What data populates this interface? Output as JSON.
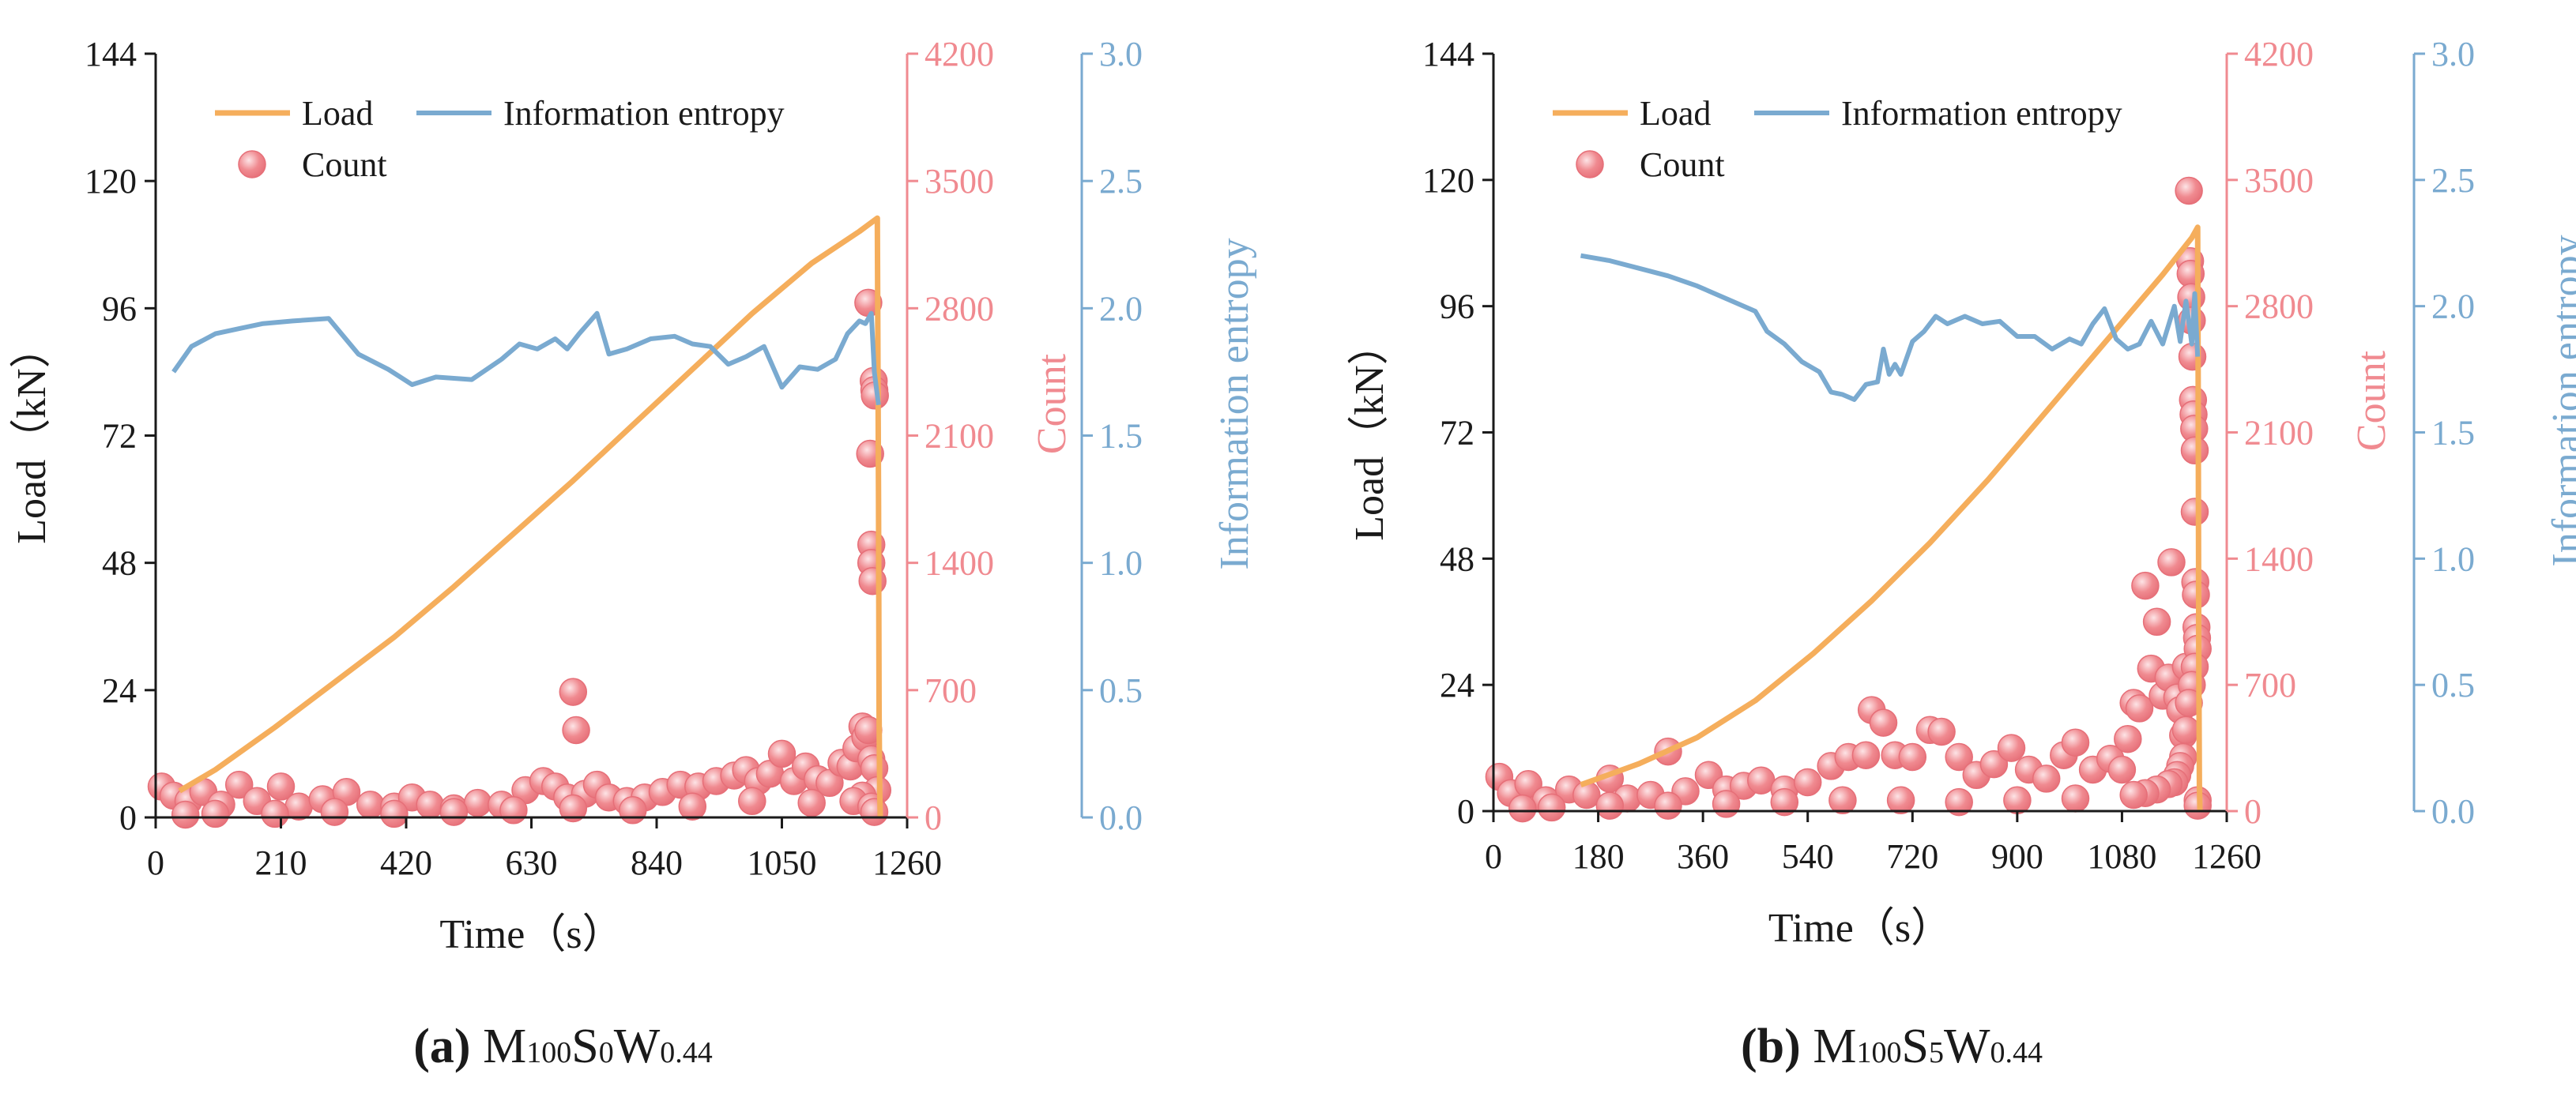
{
  "colors": {
    "load": "#F5AE5C",
    "count": "#F08A90",
    "count_stroke": "#E66F78",
    "entropy": "#7AAAD0",
    "axis": "#1a1a1a"
  },
  "chart_data": [
    {
      "type": "line+scatter",
      "id": "a",
      "caption": {
        "label": "(a)",
        "parts": [
          {
            "text": "M",
            "sub": false
          },
          {
            "text": "100",
            "sub": true
          },
          {
            "text": "S",
            "sub": false
          },
          {
            "text": "0",
            "sub": true
          },
          {
            "text": "W",
            "sub": false
          },
          {
            "text": "0.44",
            "sub": true
          }
        ]
      },
      "xlabel": "Time（s）",
      "ylabel": "Load（kN）",
      "y2label": "Count",
      "y3label": "Information entropy",
      "xlim": [
        0,
        1260
      ],
      "xticks": [
        0,
        210,
        420,
        630,
        840,
        1050,
        1260
      ],
      "ylim": [
        0,
        144
      ],
      "yticks": [
        0,
        24,
        48,
        72,
        96,
        120,
        144
      ],
      "y2lim": [
        0,
        4200
      ],
      "y2ticks": [
        0,
        700,
        1400,
        2100,
        2800,
        3500,
        4200
      ],
      "y3lim": [
        0,
        3.0
      ],
      "y3ticks": [
        "0.0",
        "0.5",
        "1.0",
        "1.5",
        "2.0",
        "2.5",
        "3.0"
      ],
      "legend": {
        "load": "Load",
        "entropy": "Information entropy",
        "count": "Count"
      },
      "series": [
        {
          "name": "Load",
          "x": [
            40,
            100,
            200,
            300,
            400,
            500,
            600,
            700,
            800,
            900,
            1000,
            1100,
            1180,
            1210,
            1212,
            1213,
            1214,
            1215
          ],
          "y": [
            5,
            9,
            17,
            25.5,
            34,
            43.5,
            53.5,
            63.5,
            74,
            84.5,
            95,
            104.5,
            110.5,
            113,
            60,
            20,
            5,
            0
          ]
        },
        {
          "name": "Information entropy",
          "x": [
            30,
            60,
            100,
            140,
            180,
            230,
            290,
            340,
            390,
            430,
            470,
            530,
            580,
            610,
            640,
            670,
            690,
            710,
            740,
            760,
            790,
            830,
            870,
            900,
            930,
            960,
            990,
            1020,
            1050,
            1080,
            1110,
            1140,
            1160,
            1180,
            1190,
            1200,
            1205,
            1212
          ],
          "y": [
            1.75,
            1.85,
            1.9,
            1.92,
            1.94,
            1.95,
            1.96,
            1.82,
            1.76,
            1.7,
            1.73,
            1.72,
            1.8,
            1.86,
            1.84,
            1.88,
            1.84,
            1.9,
            1.98,
            1.82,
            1.84,
            1.88,
            1.89,
            1.86,
            1.85,
            1.78,
            1.81,
            1.85,
            1.69,
            1.77,
            1.76,
            1.8,
            1.9,
            1.95,
            1.94,
            1.98,
            1.75,
            1.62
          ]
        },
        {
          "name": "Count",
          "points": [
            [
              10,
              170
            ],
            [
              30,
              120
            ],
            [
              55,
              90
            ],
            [
              80,
              140
            ],
            [
              110,
              70
            ],
            [
              140,
              180
            ],
            [
              170,
              90
            ],
            [
              210,
              170
            ],
            [
              240,
              60
            ],
            [
              280,
              100
            ],
            [
              320,
              140
            ],
            [
              360,
              70
            ],
            [
              400,
              60
            ],
            [
              430,
              110
            ],
            [
              460,
              70
            ],
            [
              500,
              50
            ],
            [
              540,
              80
            ],
            [
              580,
              70
            ],
            [
              620,
              150
            ],
            [
              650,
              200
            ],
            [
              670,
              170
            ],
            [
              690,
              110
            ],
            [
              700,
              690
            ],
            [
              705,
              480
            ],
            [
              720,
              130
            ],
            [
              740,
              180
            ],
            [
              760,
              110
            ],
            [
              790,
              90
            ],
            [
              820,
              110
            ],
            [
              850,
              140
            ],
            [
              880,
              180
            ],
            [
              910,
              170
            ],
            [
              940,
              200
            ],
            [
              970,
              230
            ],
            [
              990,
              260
            ],
            [
              1010,
              200
            ],
            [
              1030,
              240
            ],
            [
              1050,
              350
            ],
            [
              1070,
              200
            ],
            [
              1090,
              280
            ],
            [
              1110,
              210
            ],
            [
              1130,
              190
            ],
            [
              1150,
              300
            ],
            [
              1165,
              280
            ],
            [
              1175,
              380
            ],
            [
              1185,
              500
            ],
            [
              1190,
              440
            ],
            [
              1195,
              2830
            ],
            [
              1198,
              2000
            ],
            [
              1200,
              1500
            ],
            [
              1200,
              1400
            ],
            [
              1202,
              1300
            ],
            [
              1204,
              2400
            ],
            [
              1205,
              2350
            ],
            [
              1206,
              2320
            ],
            [
              1195,
              480
            ],
            [
              1200,
              320
            ],
            [
              1205,
              270
            ],
            [
              1210,
              150
            ],
            [
              1185,
              120
            ],
            [
              1170,
              90
            ],
            [
              1100,
              80
            ],
            [
              1000,
              90
            ],
            [
              900,
              60
            ],
            [
              800,
              40
            ],
            [
              700,
              50
            ],
            [
              600,
              40
            ],
            [
              500,
              30
            ],
            [
              400,
              20
            ],
            [
              300,
              30
            ],
            [
              200,
              20
            ],
            [
              100,
              20
            ],
            [
              50,
              15
            ],
            [
              1200,
              60
            ],
            [
              1205,
              30
            ]
          ]
        }
      ]
    },
    {
      "type": "line+scatter",
      "id": "b",
      "caption": {
        "label": "(b)",
        "parts": [
          {
            "text": "M",
            "sub": false
          },
          {
            "text": "100",
            "sub": true
          },
          {
            "text": "S",
            "sub": false
          },
          {
            "text": "5",
            "sub": true
          },
          {
            "text": "W",
            "sub": false
          },
          {
            "text": "0.44",
            "sub": true
          }
        ]
      },
      "xlabel": "Time（s）",
      "ylabel": "Load（kN）",
      "y2label": "Count",
      "y3label": "Information entropy",
      "xlim": [
        0,
        1260
      ],
      "xticks": [
        0,
        180,
        360,
        540,
        720,
        900,
        1080,
        1260
      ],
      "ylim": [
        0,
        144
      ],
      "yticks": [
        0,
        24,
        48,
        72,
        96,
        120,
        144
      ],
      "y2lim": [
        0,
        4200
      ],
      "y2ticks": [
        0,
        700,
        1400,
        2100,
        2800,
        3500,
        4200
      ],
      "y3lim": [
        0,
        3.0
      ],
      "y3ticks": [
        "0.0",
        "0.5",
        "1.0",
        "1.5",
        "2.0",
        "2.5",
        "3.0"
      ],
      "legend": {
        "load": "Load",
        "entropy": "Information entropy",
        "count": "Count"
      },
      "series": [
        {
          "name": "Load",
          "x": [
            150,
            250,
            350,
            450,
            550,
            650,
            750,
            850,
            950,
            1050,
            1150,
            1200,
            1210,
            1211,
            1212,
            1213,
            1214
          ],
          "y": [
            5,
            9,
            14,
            21,
            30,
            40,
            51,
            63,
            76,
            89,
            102,
            109,
            111,
            80,
            30,
            5,
            0
          ]
        },
        {
          "name": "Information entropy",
          "x": [
            150,
            200,
            250,
            300,
            350,
            400,
            450,
            470,
            500,
            530,
            560,
            580,
            600,
            620,
            640,
            660,
            670,
            680,
            690,
            700,
            720,
            740,
            760,
            780,
            810,
            840,
            870,
            900,
            930,
            960,
            990,
            1010,
            1030,
            1050,
            1070,
            1090,
            1110,
            1130,
            1150,
            1170,
            1180,
            1190,
            1200,
            1205,
            1210
          ],
          "y": [
            2.2,
            2.18,
            2.15,
            2.12,
            2.08,
            2.03,
            1.98,
            1.9,
            1.85,
            1.78,
            1.74,
            1.66,
            1.65,
            1.63,
            1.69,
            1.7,
            1.83,
            1.73,
            1.77,
            1.73,
            1.86,
            1.9,
            1.96,
            1.93,
            1.96,
            1.93,
            1.94,
            1.88,
            1.88,
            1.83,
            1.87,
            1.85,
            1.93,
            1.99,
            1.87,
            1.83,
            1.85,
            1.94,
            1.85,
            2.0,
            1.86,
            2.02,
            1.85,
            2.05,
            1.8
          ]
        },
        {
          "name": "Count",
          "points": [
            [
              10,
              190
            ],
            [
              30,
              100
            ],
            [
              60,
              150
            ],
            [
              90,
              60
            ],
            [
              130,
              120
            ],
            [
              160,
              90
            ],
            [
              200,
              180
            ],
            [
              230,
              70
            ],
            [
              270,
              90
            ],
            [
              300,
              330
            ],
            [
              330,
              110
            ],
            [
              370,
              200
            ],
            [
              400,
              120
            ],
            [
              430,
              140
            ],
            [
              460,
              170
            ],
            [
              500,
              120
            ],
            [
              540,
              160
            ],
            [
              580,
              250
            ],
            [
              610,
              300
            ],
            [
              640,
              310
            ],
            [
              650,
              560
            ],
            [
              670,
              490
            ],
            [
              690,
              310
            ],
            [
              720,
              300
            ],
            [
              750,
              450
            ],
            [
              770,
              440
            ],
            [
              800,
              300
            ],
            [
              830,
              200
            ],
            [
              860,
              260
            ],
            [
              890,
              350
            ],
            [
              920,
              230
            ],
            [
              950,
              180
            ],
            [
              980,
              310
            ],
            [
              1000,
              380
            ],
            [
              1030,
              230
            ],
            [
              1060,
              290
            ],
            [
              1080,
              230
            ],
            [
              1090,
              400
            ],
            [
              1100,
              600
            ],
            [
              1110,
              570
            ],
            [
              1120,
              1250
            ],
            [
              1130,
              790
            ],
            [
              1140,
              1050
            ],
            [
              1150,
              640
            ],
            [
              1160,
              740
            ],
            [
              1165,
              1380
            ],
            [
              1175,
              630
            ],
            [
              1180,
              560
            ],
            [
              1185,
              420
            ],
            [
              1190,
              800
            ],
            [
              1195,
              3440
            ],
            [
              1197,
              3050
            ],
            [
              1198,
              2980
            ],
            [
              1199,
              2850
            ],
            [
              1200,
              2720
            ],
            [
              1201,
              2520
            ],
            [
              1202,
              2280
            ],
            [
              1203,
              2200
            ],
            [
              1204,
              2120
            ],
            [
              1205,
              2000
            ],
            [
              1205,
              1660
            ],
            [
              1206,
              1270
            ],
            [
              1207,
              1200
            ],
            [
              1208,
              1020
            ],
            [
              1209,
              960
            ],
            [
              1210,
              900
            ],
            [
              1205,
              800
            ],
            [
              1200,
              700
            ],
            [
              1195,
              600
            ],
            [
              1190,
              450
            ],
            [
              1185,
              300
            ],
            [
              1180,
              250
            ],
            [
              1175,
              200
            ],
            [
              1170,
              160
            ],
            [
              1160,
              150
            ],
            [
              1140,
              120
            ],
            [
              1120,
              100
            ],
            [
              1100,
              90
            ],
            [
              1000,
              70
            ],
            [
              900,
              60
            ],
            [
              800,
              50
            ],
            [
              700,
              60
            ],
            [
              600,
              60
            ],
            [
              500,
              50
            ],
            [
              400,
              40
            ],
            [
              300,
              30
            ],
            [
              200,
              30
            ],
            [
              100,
              20
            ],
            [
              50,
              15
            ],
            [
              1210,
              60
            ],
            [
              1210,
              30
            ]
          ]
        }
      ]
    }
  ]
}
